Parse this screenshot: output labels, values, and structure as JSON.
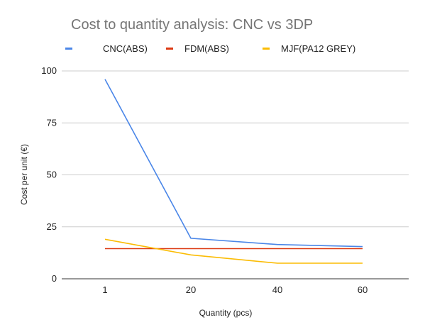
{
  "chart_data": {
    "type": "line",
    "title": "Cost to quantity analysis: CNC vs 3DP",
    "xlabel": "Quantity (pcs)",
    "ylabel": "Cost per unit (€)",
    "categories": [
      "1",
      "20",
      "40",
      "60"
    ],
    "ylim": [
      0,
      100
    ],
    "yticks": [
      0,
      25,
      50,
      75,
      100
    ],
    "grid": true,
    "legend_position": "top",
    "series": [
      {
        "name": "CNC(ABS)",
        "color": "#4a86e8",
        "values": [
          96,
          19.5,
          16.5,
          15.5
        ]
      },
      {
        "name": "FDM(ABS)",
        "color": "#dc3912",
        "values": [
          14.5,
          14.5,
          14.5,
          14.5
        ]
      },
      {
        "name": "MJF(PA12 GREY)",
        "color": "#fbbc04",
        "values": [
          19,
          11.5,
          7.5,
          7.5
        ]
      }
    ]
  }
}
